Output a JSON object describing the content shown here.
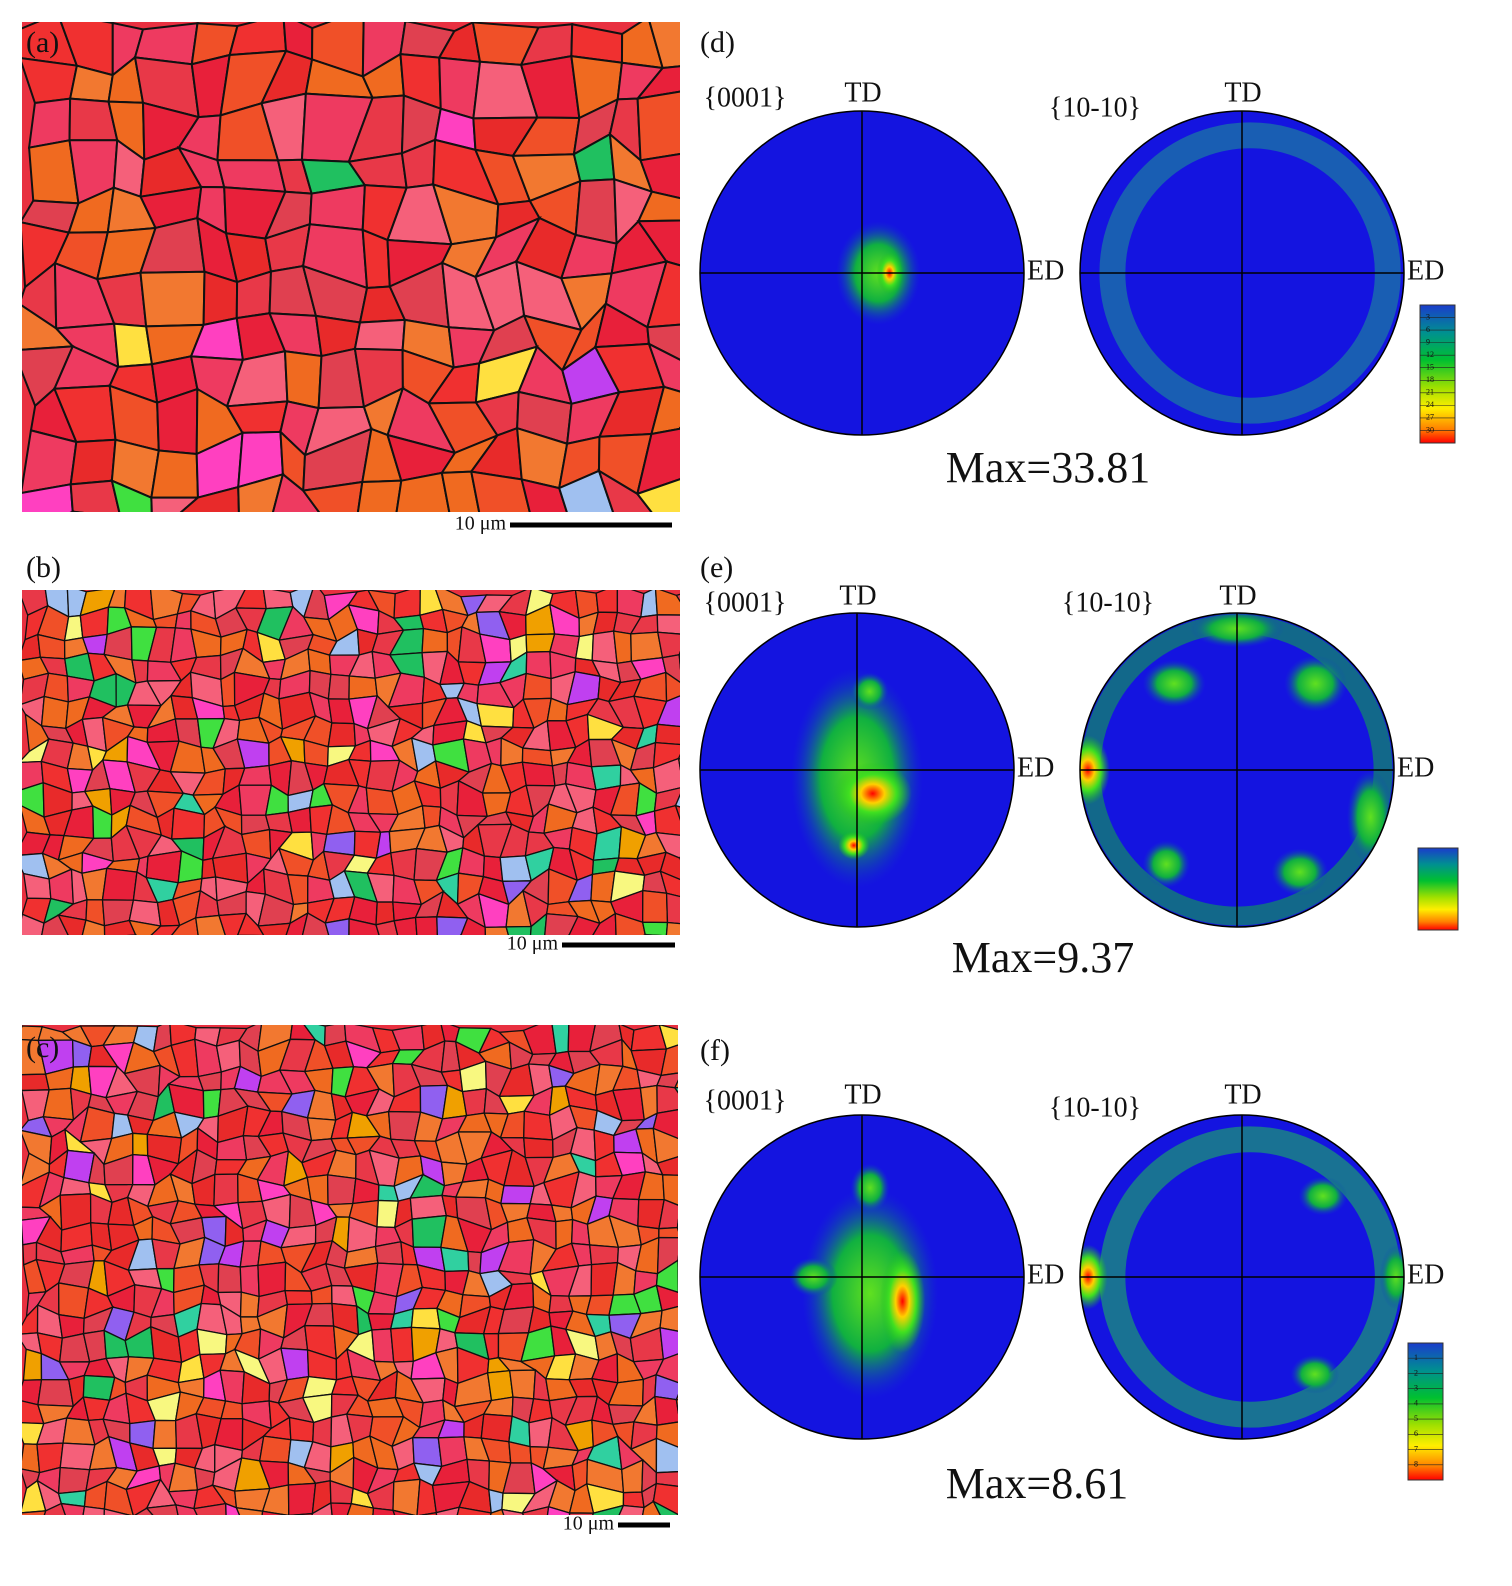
{
  "maps": [
    {
      "label": "(a)",
      "scale_bar": "10 μm"
    },
    {
      "label": "(b)",
      "scale_bar": "10 μm"
    },
    {
      "label": "(c)",
      "scale_bar": "10 μm"
    }
  ],
  "pole_figures": [
    {
      "label": "(d)",
      "figures": [
        {
          "plane": "{0001}",
          "td": "TD",
          "ed": "ED"
        },
        {
          "plane": "{10-10}",
          "td": "TD",
          "ed": "ED"
        }
      ],
      "max": "Max=33.81",
      "legend_ticks": [
        "3",
        "6",
        "9",
        "12",
        "15",
        "18",
        "21",
        "24",
        "27",
        "30"
      ]
    },
    {
      "label": "(e)",
      "figures": [
        {
          "plane": "{0001}",
          "td": "TD",
          "ed": "ED"
        },
        {
          "plane": "{10-10}",
          "td": "TD",
          "ed": "ED"
        }
      ],
      "max": "Max=9.37"
    },
    {
      "label": "(f)",
      "figures": [
        {
          "plane": "{0001}",
          "td": "TD",
          "ed": "ED"
        },
        {
          "plane": "{10-10}",
          "td": "TD",
          "ed": "ED"
        }
      ],
      "max": "Max=8.61",
      "legend_ticks": [
        "1",
        "2",
        "3",
        "4",
        "5",
        "6",
        "7",
        "8"
      ]
    }
  ]
}
